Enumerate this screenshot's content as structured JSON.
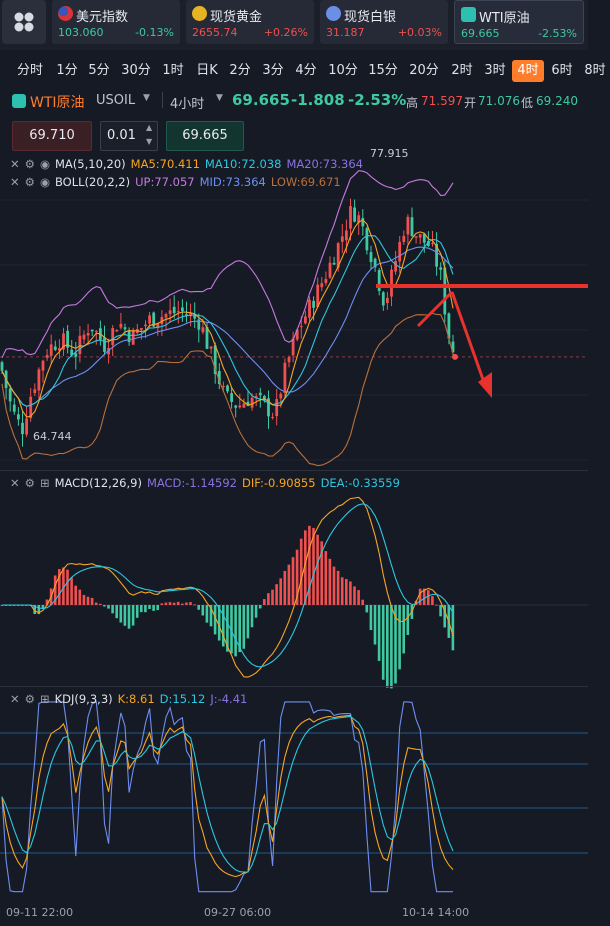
{
  "watchlist": [
    {
      "name": "美元指数",
      "price": "103.060",
      "change": "-0.13%",
      "icon": "us-flag-icon",
      "price_color": "#3fc9a1",
      "change_color": "#3fc9a1"
    },
    {
      "name": "现货黄金",
      "price": "2655.74",
      "change": "+0.26%",
      "icon": "gold-coin-icon",
      "price_color": "#f0504f",
      "change_color": "#f0504f"
    },
    {
      "name": "现货白银",
      "price": "31.187",
      "change": "+0.03%",
      "icon": "silver-icon",
      "price_color": "#f0504f",
      "change_color": "#f0504f"
    },
    {
      "name": "WTI原油",
      "price": "69.665",
      "change": "-2.53%",
      "icon": "oil-icon",
      "price_color": "#3fc9a1",
      "change_color": "#3fc9a1"
    }
  ],
  "periods": [
    "分时",
    "1分",
    "5分",
    "30分",
    "1时",
    "日K",
    "2分",
    "3分",
    "4分",
    "10分",
    "15分",
    "20分",
    "2时",
    "3时",
    "4时",
    "6时",
    "8时"
  ],
  "selected_period": "4时",
  "symbol": {
    "name": "WTI原油",
    "code": "USOIL",
    "interval": "4小时",
    "price": "69.665",
    "change": "-1.808",
    "change_pct": "-2.53%",
    "high_label": "高",
    "high": "71.597",
    "open_label": "开",
    "open": "71.076",
    "low_label": "低",
    "low": "69.240",
    "low_partial": "低"
  },
  "order": {
    "sell_price": "69.710",
    "lot": "0.01",
    "buy_price": "69.665"
  },
  "main_legend": {
    "ma_label": "MA(5,10,20)",
    "ma5": "MA5:70.411",
    "ma10": "MA10:72.038",
    "ma20": "MA20:73.364",
    "boll_label": "BOLL(20,2,2)",
    "up": "UP:77.057",
    "mid": "MID:73.364",
    "low": "LOW:69.671",
    "max_label": "77.915",
    "min_label": "64.744"
  },
  "macd_legend": {
    "label": "MACD(12,26,9)",
    "macd": "MACD:-1.14592",
    "dif": "DIF:-0.90855",
    "dea": "DEA:-0.33559"
  },
  "kdj_legend": {
    "label": "KDJ(9,3,3)",
    "k": "K:8.61",
    "d": "D:15.12",
    "j": "J:-4.41"
  },
  "time_axis": [
    "09-11 22:00",
    "09-27 06:00",
    "10-14 14:00"
  ],
  "colors": {
    "up": "#f0504f",
    "down": "#3fc9a1",
    "accent": "#ff7d2a",
    "ma5": "#f6a623",
    "ma10": "#2dc7e0",
    "ma20": "#8a72e0",
    "boll_up": "#c67adf",
    "boll_mid": "#6e8ef0",
    "boll_low": "#b8703a"
  },
  "chart_data": [
    {
      "type": "candlestick",
      "title": "WTI原油 USOIL 4小时",
      "series": [
        {
          "name": "MA5"
        },
        {
          "name": "MA10"
        },
        {
          "name": "MA20"
        },
        {
          "name": "UP"
        },
        {
          "name": "MID"
        },
        {
          "name": "LOW"
        }
      ],
      "ylim": [
        64.744,
        77.915
      ],
      "last": 69.665
    },
    {
      "type": "bar",
      "title": "MACD(12,26,9)",
      "series": [
        {
          "name": "DIF",
          "last": -0.90855
        },
        {
          "name": "DEA",
          "last": -0.33559
        },
        {
          "name": "MACD",
          "last": -1.14592
        }
      ]
    },
    {
      "type": "line",
      "title": "KDJ(9,3,3)",
      "series": [
        {
          "name": "K",
          "last": 8.61
        },
        {
          "name": "D",
          "last": 15.12
        },
        {
          "name": "J",
          "last": -4.41
        }
      ]
    }
  ]
}
